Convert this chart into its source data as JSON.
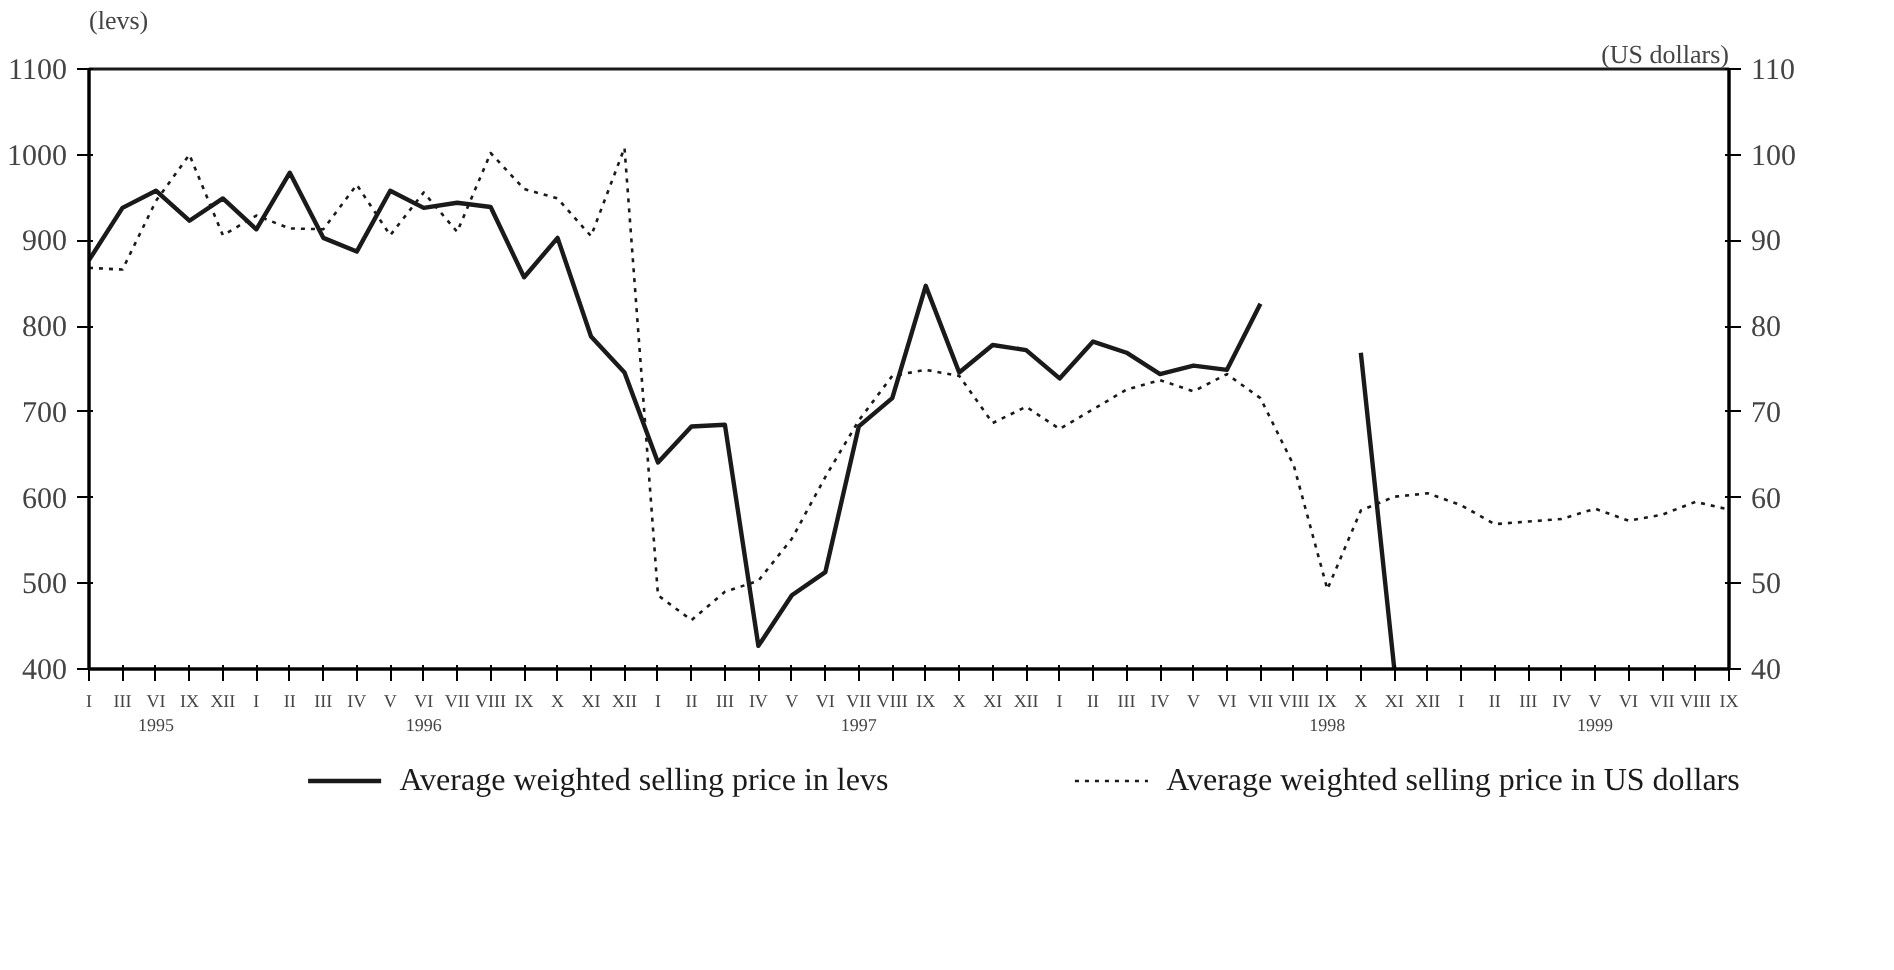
{
  "chart_data": {
    "type": "line",
    "ylabel": "(levs)",
    "y2label": "(US dollars)",
    "categories": [
      "I",
      "III",
      "VI\n1995",
      "IX",
      "XII",
      "I",
      "II",
      "III",
      "IV",
      "V",
      "VI\n1996",
      "VII",
      "VIII",
      "IX",
      "X",
      "XI",
      "XII",
      "I",
      "II",
      "III",
      "IV",
      "V",
      "VI",
      "VII\n1997",
      "VIII",
      "IX",
      "X",
      "XI",
      "XII",
      "I",
      "II",
      "III",
      "IV",
      "V",
      "VI",
      "VII",
      "VIII",
      "IX\n1998",
      "X",
      "XI",
      "XII",
      "I",
      "II",
      "III",
      "IV",
      "V\n1999",
      "VI",
      "VII",
      "VIII",
      "IX"
    ],
    "ylim": [
      400,
      1100
    ],
    "yticks": [
      400,
      500,
      600,
      700,
      800,
      900,
      1000,
      1100
    ],
    "y2lim": [
      40,
      110
    ],
    "y2ticks": [
      40,
      50,
      60,
      70,
      80,
      90,
      100,
      110
    ],
    "grid": false,
    "legend": "bottom",
    "series": [
      {
        "name": "Average weighted selling price in levs",
        "color": "#1a1a1a",
        "line_style": "solid",
        "values": [
          877,
          938,
          958,
          923,
          949,
          913,
          979,
          903,
          887,
          958,
          938,
          944,
          939,
          857,
          903,
          788,
          746,
          641,
          683,
          685,
          427,
          486,
          513,
          683,
          716,
          847,
          746,
          778,
          772,
          739,
          782,
          769,
          744,
          754,
          749,
          826,
          null,
          null,
          769,
          400,
          null,
          null,
          null,
          null,
          null,
          null,
          null,
          null,
          null,
          null
        ]
      },
      {
        "name": "Average weighted selling price in US dollars",
        "color": "#1a1a1a",
        "line_style": "dotted",
        "axis": "y2",
        "values": [
          86.8,
          86.6,
          94.6,
          100,
          90.6,
          92.9,
          91.4,
          91.3,
          96.5,
          90.6,
          95.6,
          91,
          100.2,
          96,
          94.9,
          90.5,
          100.8,
          48.6,
          45.7,
          49,
          50.3,
          55.2,
          62.4,
          69,
          74.2,
          74.9,
          74.2,
          68.7,
          70.6,
          68,
          70.3,
          72.6,
          73.7,
          72.4,
          74.4,
          71.6,
          63.7,
          49.3,
          58.5,
          60.1,
          60.5,
          59.1,
          56.9,
          57.2,
          57.5,
          58.7,
          57.3,
          58,
          59.5,
          58.6
        ]
      }
    ]
  }
}
